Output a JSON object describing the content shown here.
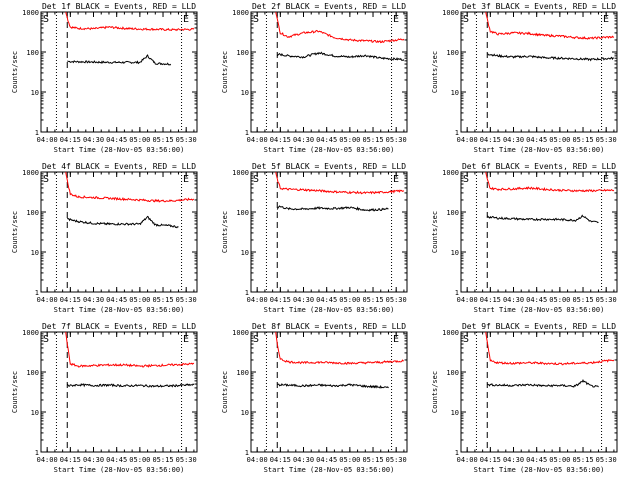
{
  "figure": {
    "colors": {
      "events": "#000000",
      "lld": "#ff0000",
      "axes": "#000000",
      "background": "#ffffff"
    }
  },
  "chart_data": [
    {
      "type": "line",
      "title": "Det 1f BLACK = Events, RED = LLD",
      "xlabel": "Start Time (28-Nov-05 03:56:00)",
      "ylabel": "Counts/sec",
      "yscale": "log",
      "ylim": [
        1,
        1000
      ],
      "xlim": [
        "03:56",
        "05:37"
      ],
      "x_ticks": [
        "04:00",
        "04:15",
        "04:30",
        "04:45",
        "05:00",
        "05:15",
        "05:30"
      ],
      "y_ticks": [
        "1",
        "10",
        "100",
        "1000"
      ],
      "markers": [
        "S",
        "E"
      ],
      "series": [
        {
          "name": "BLACK = Events",
          "color": "#000000",
          "x": [
            "04:13",
            "04:14",
            "04:20",
            "04:30",
            "04:40",
            "04:50",
            "05:00",
            "05:05",
            "05:10",
            "05:20"
          ],
          "y": [
            60,
            58,
            57,
            56,
            55,
            55,
            55,
            80,
            52,
            50
          ]
        },
        {
          "name": "RED = LLD",
          "color": "#ff0000",
          "x": [
            "04:12",
            "04:13",
            "04:15",
            "04:20",
            "04:30",
            "04:40",
            "04:50",
            "05:00",
            "05:10",
            "05:20",
            "05:35"
          ],
          "y": [
            1000,
            700,
            420,
            390,
            380,
            420,
            390,
            375,
            370,
            360,
            370
          ]
        }
      ],
      "grid": false
    },
    {
      "type": "line",
      "title": "Det 2f BLACK = Events, RED = LLD",
      "xlabel": "Start Time (28-Nov-05 03:56:00)",
      "ylabel": "Counts/sec",
      "yscale": "log",
      "ylim": [
        1,
        1000
      ],
      "xlim": [
        "03:56",
        "05:37"
      ],
      "x_ticks": [
        "04:00",
        "04:15",
        "04:30",
        "04:45",
        "05:00",
        "05:15",
        "05:30"
      ],
      "y_ticks": [
        "1",
        "10",
        "100",
        "1000"
      ],
      "markers": [
        "S",
        "E"
      ],
      "series": [
        {
          "name": "BLACK = Events",
          "color": "#000000",
          "x": [
            "04:13",
            "04:14",
            "04:20",
            "04:30",
            "04:40",
            "04:50",
            "05:00",
            "05:10",
            "05:20",
            "05:35"
          ],
          "y": [
            80,
            88,
            80,
            75,
            95,
            80,
            75,
            82,
            70,
            65
          ]
        },
        {
          "name": "RED = LLD",
          "color": "#ff0000",
          "x": [
            "04:12",
            "04:13",
            "04:15",
            "04:20",
            "04:30",
            "04:40",
            "04:50",
            "05:00",
            "05:10",
            "05:20",
            "05:35"
          ],
          "y": [
            1000,
            650,
            300,
            240,
            300,
            330,
            230,
            200,
            190,
            180,
            210
          ]
        }
      ],
      "grid": false
    },
    {
      "type": "line",
      "title": "Det 3f BLACK = Events, RED = LLD",
      "xlabel": "Start Time (28-Nov-05 03:56:00)",
      "ylabel": "Counts/sec",
      "yscale": "log",
      "ylim": [
        1,
        1000
      ],
      "xlim": [
        "03:56",
        "05:37"
      ],
      "x_ticks": [
        "04:00",
        "04:15",
        "04:30",
        "04:45",
        "05:00",
        "05:15",
        "05:30"
      ],
      "y_ticks": [
        "1",
        "10",
        "100",
        "1000"
      ],
      "markers": [
        "S",
        "E"
      ],
      "series": [
        {
          "name": "BLACK = Events",
          "color": "#000000",
          "x": [
            "04:13",
            "04:14",
            "04:20",
            "04:30",
            "04:40",
            "04:50",
            "05:00",
            "05:10",
            "05:20",
            "05:35"
          ],
          "y": [
            90,
            88,
            80,
            75,
            78,
            72,
            70,
            68,
            65,
            70
          ]
        },
        {
          "name": "RED = LLD",
          "color": "#ff0000",
          "x": [
            "04:12",
            "04:13",
            "04:15",
            "04:20",
            "04:30",
            "04:40",
            "04:50",
            "05:00",
            "05:10",
            "05:20",
            "05:35"
          ],
          "y": [
            1000,
            650,
            330,
            280,
            300,
            290,
            260,
            250,
            230,
            220,
            240
          ]
        }
      ],
      "grid": false
    },
    {
      "type": "line",
      "title": "Det 4f BLACK = Events, RED = LLD",
      "xlabel": "Start Time (28-Nov-05 03:56:00)",
      "ylabel": "Counts/sec",
      "yscale": "log",
      "ylim": [
        1,
        1000
      ],
      "xlim": [
        "03:56",
        "05:37"
      ],
      "x_ticks": [
        "04:00",
        "04:15",
        "04:30",
        "04:45",
        "05:00",
        "05:15",
        "05:30"
      ],
      "y_ticks": [
        "1",
        "10",
        "100",
        "1000"
      ],
      "markers": [
        "S",
        "E"
      ],
      "series": [
        {
          "name": "BLACK = Events",
          "color": "#000000",
          "x": [
            "04:13",
            "04:14",
            "04:20",
            "04:30",
            "04:40",
            "04:50",
            "05:00",
            "05:05",
            "05:10",
            "05:20",
            "05:25"
          ],
          "y": [
            70,
            65,
            58,
            52,
            50,
            50,
            50,
            75,
            48,
            45,
            42
          ]
        },
        {
          "name": "RED = LLD",
          "color": "#ff0000",
          "x": [
            "04:12",
            "04:13",
            "04:15",
            "04:20",
            "04:30",
            "04:40",
            "04:50",
            "05:00",
            "05:10",
            "05:20",
            "05:35"
          ],
          "y": [
            1000,
            600,
            280,
            240,
            230,
            220,
            210,
            200,
            190,
            190,
            210
          ]
        }
      ],
      "grid": false
    },
    {
      "type": "line",
      "title": "Det 5f BLACK = Events, RED = LLD",
      "xlabel": "Start Time (28-Nov-05 03:56:00)",
      "ylabel": "Counts/sec",
      "yscale": "log",
      "ylim": [
        1,
        1000
      ],
      "xlim": [
        "03:56",
        "05:37"
      ],
      "x_ticks": [
        "04:00",
        "04:15",
        "04:30",
        "04:45",
        "05:00",
        "05:15",
        "05:30"
      ],
      "y_ticks": [
        "1",
        "10",
        "100",
        "1000"
      ],
      "markers": [
        "S",
        "E"
      ],
      "series": [
        {
          "name": "BLACK = Events",
          "color": "#000000",
          "x": [
            "04:13",
            "04:14",
            "04:20",
            "04:30",
            "04:40",
            "04:50",
            "05:00",
            "05:10",
            "05:20",
            "05:25"
          ],
          "y": [
            115,
            140,
            120,
            118,
            125,
            122,
            130,
            112,
            115,
            120
          ]
        },
        {
          "name": "RED = LLD",
          "color": "#ff0000",
          "x": [
            "04:12",
            "04:13",
            "04:15",
            "04:20",
            "04:30",
            "04:40",
            "04:50",
            "05:00",
            "05:10",
            "05:20",
            "05:35"
          ],
          "y": [
            1000,
            650,
            390,
            370,
            360,
            340,
            320,
            310,
            300,
            310,
            340
          ]
        }
      ],
      "grid": false
    },
    {
      "type": "line",
      "title": "Det 6f BLACK = Events, RED = LLD",
      "xlabel": "Start Time (28-Nov-05 03:56:00)",
      "ylabel": "Counts/sec",
      "yscale": "log",
      "ylim": [
        1,
        1000
      ],
      "xlim": [
        "03:56",
        "05:37"
      ],
      "x_ticks": [
        "04:00",
        "04:15",
        "04:30",
        "04:45",
        "05:00",
        "05:15",
        "05:30"
      ],
      "y_ticks": [
        "1",
        "10",
        "100",
        "1000"
      ],
      "markers": [
        "S",
        "E"
      ],
      "series": [
        {
          "name": "BLACK = Events",
          "color": "#000000",
          "x": [
            "04:13",
            "04:14",
            "04:20",
            "04:30",
            "04:40",
            "04:50",
            "05:00",
            "05:10",
            "05:15",
            "05:20",
            "05:25"
          ],
          "y": [
            80,
            75,
            70,
            68,
            65,
            66,
            65,
            62,
            80,
            58,
            55
          ]
        },
        {
          "name": "RED = LLD",
          "color": "#ff0000",
          "x": [
            "04:12",
            "04:13",
            "04:15",
            "04:20",
            "04:30",
            "04:40",
            "04:50",
            "05:00",
            "05:10",
            "05:20",
            "05:35"
          ],
          "y": [
            1000,
            650,
            390,
            370,
            380,
            400,
            370,
            350,
            340,
            340,
            350
          ]
        }
      ],
      "grid": false
    },
    {
      "type": "line",
      "title": "Det 7f BLACK = Events, RED = LLD",
      "xlabel": "Start Time (28-Nov-05 03:56:00)",
      "ylabel": "Counts/sec",
      "yscale": "log",
      "ylim": [
        1,
        1000
      ],
      "xlim": [
        "03:56",
        "05:37"
      ],
      "x_ticks": [
        "04:00",
        "04:15",
        "04:30",
        "04:45",
        "05:00",
        "05:15",
        "05:30"
      ],
      "y_ticks": [
        "1",
        "10",
        "100",
        "1000"
      ],
      "markers": [
        "S",
        "E"
      ],
      "series": [
        {
          "name": "BLACK = Events",
          "color": "#000000",
          "x": [
            "04:13",
            "04:14",
            "04:20",
            "04:30",
            "04:40",
            "04:50",
            "05:00",
            "05:10",
            "05:20",
            "05:35"
          ],
          "y": [
            50,
            45,
            48,
            46,
            47,
            45,
            46,
            44,
            45,
            48
          ]
        },
        {
          "name": "RED = LLD",
          "color": "#ff0000",
          "x": [
            "04:12",
            "04:13",
            "04:15",
            "04:20",
            "04:30",
            "04:40",
            "04:50",
            "05:00",
            "05:10",
            "05:20",
            "05:35"
          ],
          "y": [
            1000,
            500,
            160,
            140,
            145,
            150,
            150,
            140,
            145,
            150,
            160
          ]
        }
      ],
      "grid": false
    },
    {
      "type": "line",
      "title": "Det 8f BLACK = Events, RED = LLD",
      "xlabel": "Start Time (28-Nov-05 03:56:00)",
      "ylabel": "Counts/sec",
      "yscale": "log",
      "ylim": [
        1,
        1000
      ],
      "xlim": [
        "03:56",
        "05:37"
      ],
      "x_ticks": [
        "04:00",
        "04:15",
        "04:30",
        "04:45",
        "05:00",
        "05:15",
        "05:30"
      ],
      "y_ticks": [
        "1",
        "10",
        "100",
        "1000"
      ],
      "markers": [
        "S",
        "E"
      ],
      "series": [
        {
          "name": "BLACK = Events",
          "color": "#000000",
          "x": [
            "04:13",
            "04:14",
            "04:20",
            "04:30",
            "04:40",
            "04:50",
            "05:00",
            "05:10",
            "05:20",
            "05:25"
          ],
          "y": [
            50,
            48,
            47,
            45,
            47,
            45,
            48,
            44,
            42,
            40
          ]
        },
        {
          "name": "RED = LLD",
          "color": "#ff0000",
          "x": [
            "04:12",
            "04:13",
            "04:15",
            "04:20",
            "04:30",
            "04:40",
            "04:50",
            "05:00",
            "05:10",
            "05:20",
            "05:35"
          ],
          "y": [
            1000,
            500,
            210,
            180,
            170,
            175,
            170,
            165,
            170,
            175,
            190
          ]
        }
      ],
      "grid": false
    },
    {
      "type": "line",
      "title": "Det 9f BLACK = Events, RED = LLD",
      "xlabel": "Start Time (28-Nov-05 03:56:00)",
      "ylabel": "Counts/sec",
      "yscale": "log",
      "ylim": [
        1,
        1000
      ],
      "xlim": [
        "03:56",
        "05:37"
      ],
      "x_ticks": [
        "04:00",
        "04:15",
        "04:30",
        "04:45",
        "05:00",
        "05:15",
        "05:30"
      ],
      "y_ticks": [
        "1",
        "10",
        "100",
        "1000"
      ],
      "markers": [
        "S",
        "E"
      ],
      "series": [
        {
          "name": "BLACK = Events",
          "color": "#000000",
          "x": [
            "04:13",
            "04:14",
            "04:20",
            "04:30",
            "04:40",
            "04:50",
            "05:00",
            "05:10",
            "05:15",
            "05:20",
            "05:25"
          ],
          "y": [
            50,
            48,
            47,
            46,
            48,
            45,
            46,
            44,
            60,
            45,
            42
          ]
        },
        {
          "name": "RED = LLD",
          "color": "#ff0000",
          "x": [
            "04:12",
            "04:13",
            "04:15",
            "04:20",
            "04:30",
            "04:40",
            "04:50",
            "05:00",
            "05:10",
            "05:20",
            "05:35"
          ],
          "y": [
            1000,
            550,
            190,
            170,
            165,
            170,
            165,
            160,
            165,
            170,
            200
          ]
        }
      ],
      "grid": false
    }
  ]
}
